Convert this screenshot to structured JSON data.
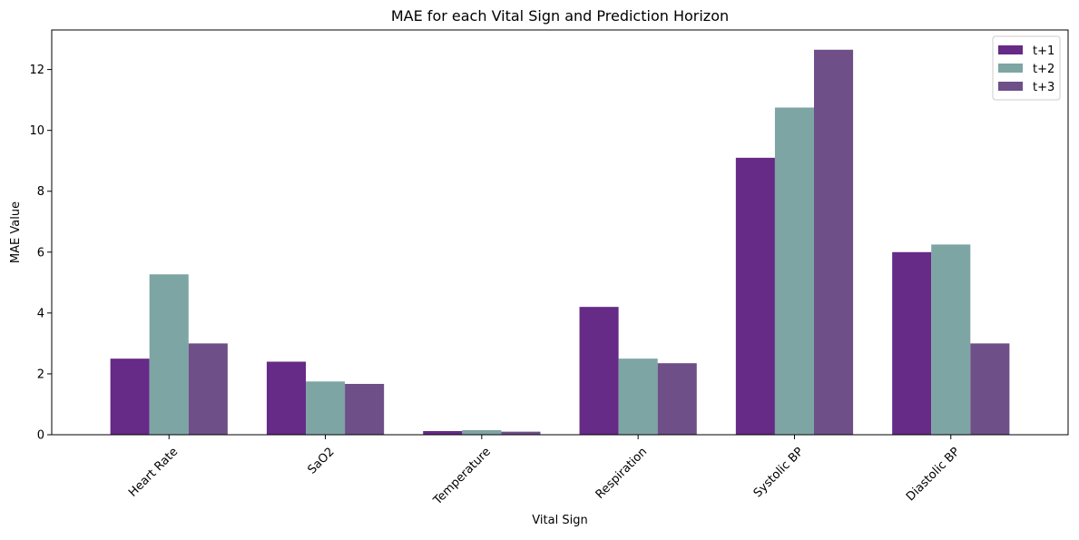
{
  "chart_data": {
    "type": "bar",
    "title": "MAE for each Vital Sign and Prediction Horizon",
    "xlabel": "Vital Sign",
    "ylabel": "MAE Value",
    "categories": [
      "Heart Rate",
      "SaO2",
      "Temperature",
      "Respiration",
      "Systolic BP",
      "Diastolic BP"
    ],
    "series": [
      {
        "name": "t+1",
        "color": "#662a87",
        "values": [
          2.5,
          2.4,
          0.12,
          4.2,
          9.1,
          6.0
        ]
      },
      {
        "name": "t+2",
        "color": "#7da5a4",
        "values": [
          5.27,
          1.75,
          0.15,
          2.5,
          10.75,
          6.25
        ]
      },
      {
        "name": "t+3",
        "color": "#6e4f88",
        "values": [
          3.0,
          1.67,
          0.1,
          2.35,
          12.65,
          3.0
        ]
      }
    ],
    "ylim": [
      0,
      13.3
    ],
    "yticks": [
      0,
      2,
      4,
      6,
      8,
      10,
      12
    ],
    "x_tick_rotation_deg": 45,
    "legend_position": "top-right",
    "grid": false
  }
}
